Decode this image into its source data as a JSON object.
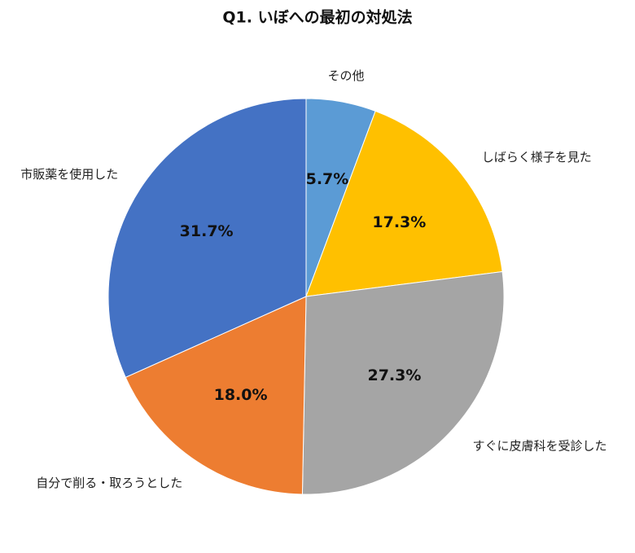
{
  "chart_data": {
    "type": "pie",
    "title": "Q1. いぼへの最初の対処法",
    "categories": [
      "その他",
      "しばらく様子を見た",
      "すぐに皮膚科を受診した",
      "自分で削る・取ろうとした",
      "市販薬を使用した"
    ],
    "values": [
      5.7,
      17.3,
      27.3,
      18.0,
      31.7
    ],
    "value_labels": [
      "5.7%",
      "17.3%",
      "27.3%",
      "18.0%",
      "31.7%"
    ],
    "colors": [
      "#5b9bd5",
      "#ffc000",
      "#a5a5a5",
      "#ed7d31",
      "#4472c4"
    ]
  }
}
